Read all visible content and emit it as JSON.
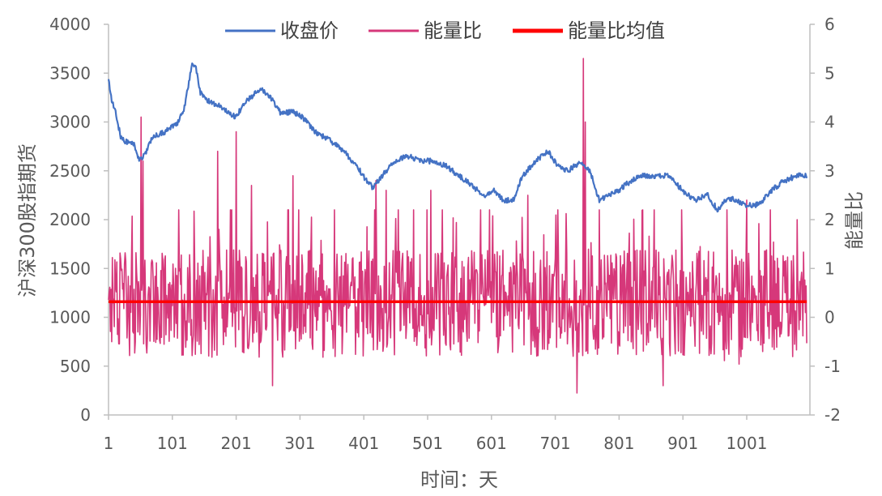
{
  "chart_data": {
    "type": "line",
    "title": "",
    "xlabel": "时间：天",
    "ylabel_left": "沪深300股指期货",
    "ylabel_right": "能量比",
    "x_range": [
      1,
      1100
    ],
    "x_ticks": [
      1,
      101,
      201,
      301,
      401,
      501,
      601,
      701,
      801,
      901,
      1001
    ],
    "y_left": {
      "range": [
        0,
        4000
      ],
      "ticks": [
        0,
        500,
        1000,
        1500,
        2000,
        2500,
        3000,
        3500,
        4000
      ]
    },
    "y_right": {
      "range": [
        -2,
        6
      ],
      "ticks": [
        -2,
        -1,
        0,
        1,
        2,
        3,
        4,
        5,
        6
      ]
    },
    "grid": false,
    "legend_position": "top",
    "series": [
      {
        "name": "收盘价",
        "axis": "left",
        "color": "#4472C4",
        "anchors": [
          [
            1,
            3450
          ],
          [
            5,
            3250
          ],
          [
            12,
            3100
          ],
          [
            20,
            2850
          ],
          [
            28,
            2800
          ],
          [
            40,
            2780
          ],
          [
            50,
            2600
          ],
          [
            60,
            2700
          ],
          [
            70,
            2850
          ],
          [
            90,
            2900
          ],
          [
            110,
            3000
          ],
          [
            120,
            3150
          ],
          [
            127,
            3400
          ],
          [
            132,
            3600
          ],
          [
            138,
            3550
          ],
          [
            145,
            3300
          ],
          [
            160,
            3200
          ],
          [
            180,
            3150
          ],
          [
            200,
            3050
          ],
          [
            215,
            3200
          ],
          [
            240,
            3350
          ],
          [
            255,
            3250
          ],
          [
            270,
            3100
          ],
          [
            290,
            3100
          ],
          [
            305,
            3050
          ],
          [
            325,
            2900
          ],
          [
            350,
            2800
          ],
          [
            370,
            2700
          ],
          [
            390,
            2550
          ],
          [
            405,
            2400
          ],
          [
            415,
            2330
          ],
          [
            430,
            2450
          ],
          [
            450,
            2600
          ],
          [
            470,
            2650
          ],
          [
            490,
            2600
          ],
          [
            510,
            2600
          ],
          [
            530,
            2550
          ],
          [
            550,
            2450
          ],
          [
            570,
            2350
          ],
          [
            590,
            2250
          ],
          [
            605,
            2300
          ],
          [
            620,
            2200
          ],
          [
            635,
            2200
          ],
          [
            650,
            2450
          ],
          [
            670,
            2600
          ],
          [
            690,
            2700
          ],
          [
            705,
            2550
          ],
          [
            720,
            2500
          ],
          [
            740,
            2580
          ],
          [
            755,
            2500
          ],
          [
            770,
            2200
          ],
          [
            785,
            2250
          ],
          [
            800,
            2300
          ],
          [
            820,
            2400
          ],
          [
            835,
            2450
          ],
          [
            860,
            2450
          ],
          [
            880,
            2450
          ],
          [
            900,
            2300
          ],
          [
            920,
            2200
          ],
          [
            940,
            2250
          ],
          [
            955,
            2100
          ],
          [
            970,
            2220
          ],
          [
            985,
            2200
          ],
          [
            1000,
            2150
          ],
          [
            1020,
            2150
          ],
          [
            1040,
            2300
          ],
          [
            1060,
            2400
          ],
          [
            1080,
            2450
          ],
          [
            1095,
            2450
          ]
        ]
      },
      {
        "name": "能量比",
        "axis": "right",
        "color": "#D6387A",
        "base_mean": 0.28,
        "spikes": [
          [
            52,
            4.1
          ],
          [
            55,
            3.2
          ],
          [
            172,
            3.4
          ],
          [
            201,
            3.8
          ],
          [
            225,
            2.7
          ],
          [
            290,
            2.9
          ],
          [
            420,
            2.8
          ],
          [
            436,
            2.6
          ],
          [
            506,
            2.6
          ],
          [
            658,
            2.5
          ],
          [
            745,
            5.3
          ],
          [
            748,
            4.0
          ],
          [
            735,
            -1.55
          ],
          [
            258,
            -1.4
          ],
          [
            870,
            -1.4
          ],
          [
            1001,
            2.4
          ],
          [
            1080,
            2.0
          ]
        ]
      },
      {
        "name": "能量比均值",
        "axis": "right",
        "color": "#FF0000",
        "value": 0.32
      }
    ]
  }
}
